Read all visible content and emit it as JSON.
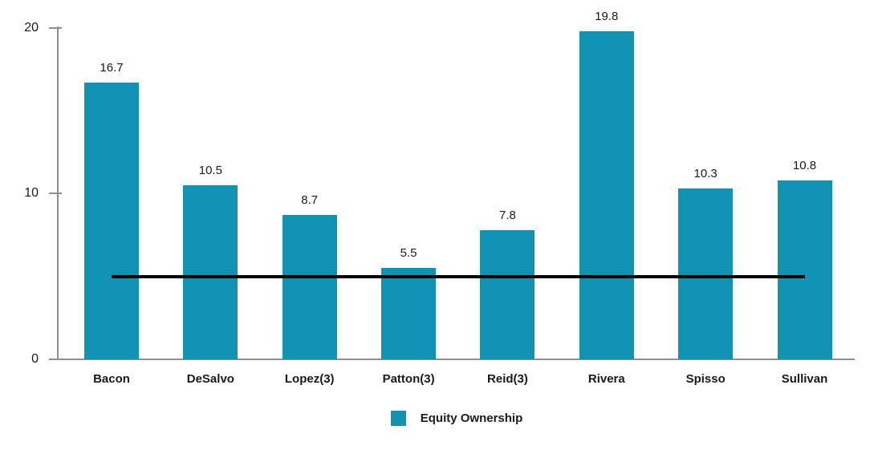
{
  "chart_data": {
    "type": "bar",
    "title": "",
    "xlabel": "",
    "ylabel": "",
    "categories": [
      "Bacon",
      "DeSalvo",
      "Lopez(3)",
      "Patton(3)",
      "Reid(3)",
      "Rivera",
      "Spisso",
      "Sullivan"
    ],
    "series": [
      {
        "name": "Equity Ownership",
        "values": [
          16.7,
          10.5,
          8.7,
          5.5,
          7.8,
          19.8,
          10.3,
          10.8
        ]
      }
    ],
    "value_labels": [
      "16.7",
      "10.5",
      "8.7",
      "5.5",
      "7.8",
      "19.8",
      "10.3",
      "10.8"
    ],
    "y_ticks": [
      {
        "value": 0,
        "label": "0"
      },
      {
        "value": 10,
        "label": "10"
      },
      {
        "value": 20,
        "label": "20"
      }
    ],
    "ylim": [
      0,
      20
    ],
    "grid": false,
    "reference_line": {
      "value": 5,
      "color": "#000000",
      "style": "solid"
    },
    "legend": {
      "position": "bottom-center",
      "entries": [
        {
          "label": "Equity Ownership",
          "color": "#1093b2"
        }
      ]
    },
    "colors": {
      "bar": "#1093b2",
      "axis": "#8f8f8f",
      "text": "#1a1a1a",
      "reference_line": "#000000",
      "background": "#ffffff"
    }
  }
}
